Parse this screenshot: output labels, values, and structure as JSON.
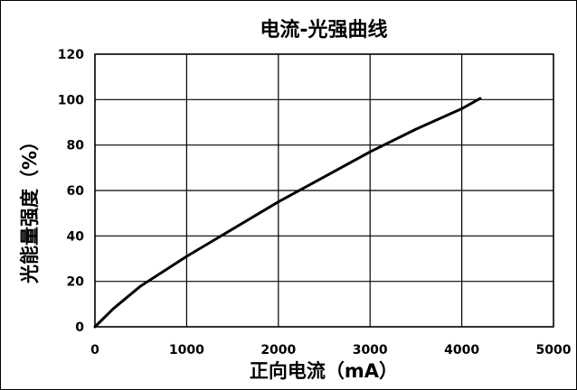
{
  "chart_data": {
    "type": "line",
    "title": "电流-光强曲线",
    "xlabel": "正向电流（mA）",
    "ylabel": "光能量强度（%）",
    "xlim": [
      0,
      5000
    ],
    "ylim": [
      0,
      120
    ],
    "x_ticks": [
      0,
      1000,
      2000,
      3000,
      4000,
      5000
    ],
    "y_ticks": [
      0,
      20,
      40,
      60,
      80,
      100,
      120
    ],
    "grid": true,
    "legend": "none",
    "series": [
      {
        "color": "#000000",
        "x": [
          0,
          200,
          500,
          1000,
          1500,
          2000,
          2500,
          3000,
          3500,
          4000,
          4200
        ],
        "y": [
          0,
          8,
          18,
          31,
          43,
          55,
          66,
          77,
          87,
          96,
          100.5
        ]
      }
    ]
  }
}
